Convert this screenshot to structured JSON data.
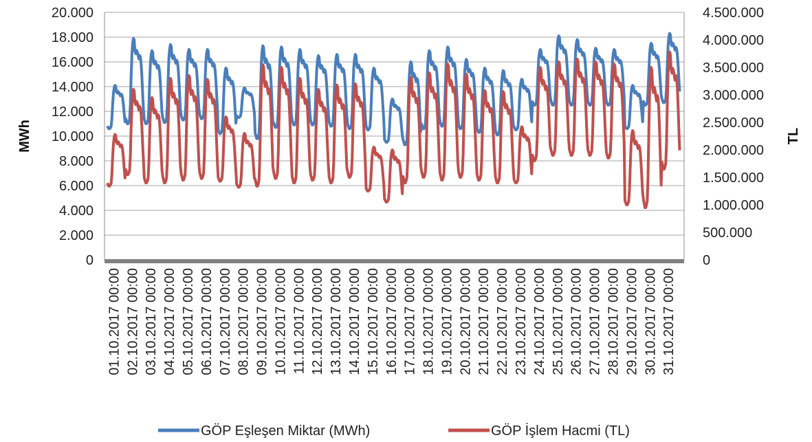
{
  "chart_data": {
    "type": "line",
    "title": "",
    "xlabel": "",
    "ylabel_left": "MWh",
    "ylabel_right": "TL",
    "ylim_left": [
      0,
      20000
    ],
    "ylim_right": [
      0,
      4500000
    ],
    "y_ticks_left": [
      "0",
      "2.000",
      "4.000",
      "6.000",
      "8.000",
      "10.000",
      "12.000",
      "14.000",
      "16.000",
      "18.000",
      "20.000"
    ],
    "y_ticks_right": [
      "0",
      "500.000",
      "1.000.000",
      "1.500.000",
      "2.000.000",
      "2.500.000",
      "3.000.000",
      "3.500.000",
      "4.000.000",
      "4.500.000"
    ],
    "categories": [
      "01.10.2017 00:00",
      "02.10.2017 00:00",
      "03.10.2017 00:00",
      "04.10.2017 00:00",
      "05.10.2017 00:00",
      "06.10.2017 00:00",
      "07.10.2017 00:00",
      "08.10.2017 00:00",
      "09.10.2017 00:00",
      "10.10.2017 00:00",
      "11.10.2017 00:00",
      "12.10.2017 00:00",
      "13.10.2017 00:00",
      "14.10.2017 00:00",
      "15.10.2017 00:00",
      "16.10.2017 00:00",
      "17.10.2017 00:00",
      "18.10.2017 00:00",
      "19.10.2017 00:00",
      "20.10.2017 00:00",
      "21.10.2017 00:00",
      "22.10.2017 00:00",
      "23.10.2017 00:00",
      "24.10.2017 00:00",
      "25.10.2017 00:00",
      "26.10.2017 00:00",
      "27.10.2017 00:00",
      "28.10.2017 00:00",
      "29.10.2017 00:00",
      "30.10.2017 00:00",
      "31.10.2017 00:00"
    ],
    "grid": "horizontal",
    "legend_position": "bottom",
    "series": [
      {
        "name": "GÖP Eşleşen Miktar (MWh)",
        "axis": "left",
        "color": "#4a7ebb",
        "daily": [
          {
            "min": 10600,
            "peak": 14100
          },
          {
            "min": 11000,
            "peak": 17900
          },
          {
            "min": 11000,
            "peak": 16900
          },
          {
            "min": 11100,
            "peak": 17400
          },
          {
            "min": 11300,
            "peak": 17000
          },
          {
            "min": 11400,
            "peak": 17000
          },
          {
            "min": 10200,
            "peak": 15500
          },
          {
            "min": 11500,
            "peak": 13900
          },
          {
            "min": 9800,
            "peak": 17300
          },
          {
            "min": 10700,
            "peak": 17200
          },
          {
            "min": 10900,
            "peak": 17000
          },
          {
            "min": 10900,
            "peak": 16500
          },
          {
            "min": 10800,
            "peak": 16600
          },
          {
            "min": 10600,
            "peak": 16600
          },
          {
            "min": 10500,
            "peak": 15500
          },
          {
            "min": 9500,
            "peak": 13000
          },
          {
            "min": 9300,
            "peak": 16000
          },
          {
            "min": 10600,
            "peak": 16900
          },
          {
            "min": 10800,
            "peak": 17200
          },
          {
            "min": 10600,
            "peak": 16200
          },
          {
            "min": 10300,
            "peak": 15500
          },
          {
            "min": 10100,
            "peak": 15300
          },
          {
            "min": 10500,
            "peak": 14600
          },
          {
            "min": 12500,
            "peak": 17000
          },
          {
            "min": 12500,
            "peak": 18100
          },
          {
            "min": 12500,
            "peak": 17800
          },
          {
            "min": 12500,
            "peak": 17100
          },
          {
            "min": 12500,
            "peak": 17000
          },
          {
            "min": 10600,
            "peak": 14100
          },
          {
            "min": 12500,
            "peak": 17500
          },
          {
            "min": 12700,
            "peak": 18300
          }
        ]
      },
      {
        "name": "GÖP İşlem Hacmi (TL)",
        "axis": "right",
        "color": "#c0504d",
        "daily": [
          {
            "min": 1340000,
            "peak": 2280000
          },
          {
            "min": 1550000,
            "peak": 3100000
          },
          {
            "min": 1400000,
            "peak": 2950000
          },
          {
            "min": 1400000,
            "peak": 3300000
          },
          {
            "min": 1450000,
            "peak": 3350000
          },
          {
            "min": 1480000,
            "peak": 3280000
          },
          {
            "min": 1430000,
            "peak": 2600000
          },
          {
            "min": 1320000,
            "peak": 2300000
          },
          {
            "min": 1340000,
            "peak": 3550000
          },
          {
            "min": 1480000,
            "peak": 3500000
          },
          {
            "min": 1400000,
            "peak": 3300000
          },
          {
            "min": 1450000,
            "peak": 3100000
          },
          {
            "min": 1400000,
            "peak": 3180000
          },
          {
            "min": 1500000,
            "peak": 3200000
          },
          {
            "min": 1250000,
            "peak": 2050000
          },
          {
            "min": 1050000,
            "peak": 2000000
          },
          {
            "min": 1400000,
            "peak": 3320000
          },
          {
            "min": 1500000,
            "peak": 3400000
          },
          {
            "min": 1450000,
            "peak": 3560000
          },
          {
            "min": 1500000,
            "peak": 3380000
          },
          {
            "min": 1450000,
            "peak": 3080000
          },
          {
            "min": 1400000,
            "peak": 3060000
          },
          {
            "min": 1400000,
            "peak": 2420000
          },
          {
            "min": 1800000,
            "peak": 3500000
          },
          {
            "min": 1900000,
            "peak": 3600000
          },
          {
            "min": 1900000,
            "peak": 3650000
          },
          {
            "min": 1900000,
            "peak": 3600000
          },
          {
            "min": 1850000,
            "peak": 3560000
          },
          {
            "min": 1000000,
            "peak": 2350000
          },
          {
            "min": 950000,
            "peak": 3500000
          },
          {
            "min": 1650000,
            "peak": 3780000
          }
        ]
      }
    ]
  }
}
